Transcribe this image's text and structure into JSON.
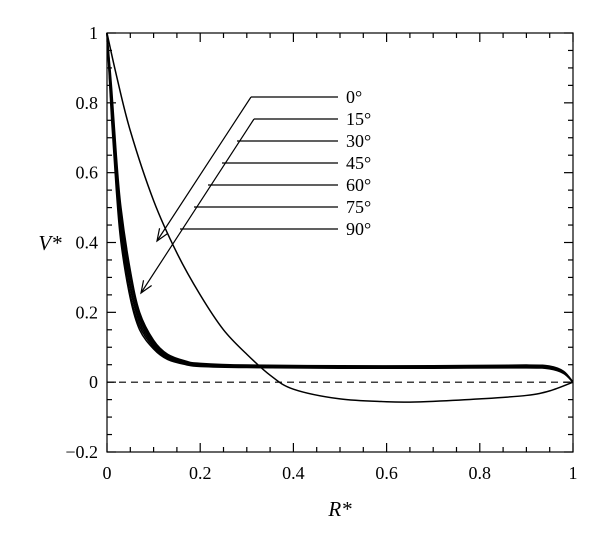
{
  "chart_data": {
    "type": "line",
    "xlabel": "R*",
    "ylabel": "V*",
    "xlim": [
      0,
      1
    ],
    "ylim": [
      -0.2,
      1
    ],
    "x_ticks": [
      "0",
      "0.2",
      "0.4",
      "0.6",
      "0.8",
      "1"
    ],
    "y_ticks": [
      "−0.2",
      "0",
      "0.2",
      "0.4",
      "0.6",
      "0.8",
      "1"
    ],
    "grid": false,
    "reference_line": {
      "y": 0,
      "style": "dashed"
    },
    "legend_position": "top-center (callouts with arrows)",
    "series": [
      {
        "name": "0°",
        "x": [
          0,
          0.02,
          0.05,
          0.1,
          0.15,
          0.2,
          0.25,
          0.3,
          0.35,
          0.4,
          0.5,
          0.6,
          0.65,
          0.7,
          0.8,
          0.9,
          0.95,
          1.0
        ],
        "y": [
          1.0,
          0.88,
          0.72,
          0.52,
          0.37,
          0.25,
          0.15,
          0.08,
          0.02,
          -0.02,
          -0.048,
          -0.056,
          -0.057,
          -0.055,
          -0.048,
          -0.038,
          -0.025,
          0.0
        ]
      },
      {
        "name": "15°",
        "x": [
          0,
          0.01,
          0.02,
          0.03,
          0.05,
          0.07,
          0.1,
          0.13,
          0.17,
          0.2,
          0.3,
          0.5,
          0.7,
          0.9,
          0.95,
          0.98,
          1.0
        ],
        "y": [
          1.0,
          0.75,
          0.55,
          0.4,
          0.24,
          0.15,
          0.095,
          0.065,
          0.05,
          0.045,
          0.042,
          0.04,
          0.04,
          0.041,
          0.038,
          0.025,
          0.0
        ]
      },
      {
        "name": "30°",
        "x": [
          0,
          0.01,
          0.02,
          0.03,
          0.05,
          0.07,
          0.1,
          0.13,
          0.17,
          0.2,
          0.3,
          0.5,
          0.7,
          0.9,
          0.95,
          0.98,
          1.0
        ],
        "y": [
          1.0,
          0.77,
          0.57,
          0.42,
          0.25,
          0.16,
          0.1,
          0.068,
          0.052,
          0.047,
          0.043,
          0.041,
          0.041,
          0.042,
          0.039,
          0.026,
          0.0
        ]
      },
      {
        "name": "45°",
        "x": [
          0,
          0.01,
          0.02,
          0.03,
          0.05,
          0.07,
          0.1,
          0.13,
          0.17,
          0.2,
          0.3,
          0.5,
          0.7,
          0.9,
          0.95,
          0.98,
          1.0
        ],
        "y": [
          1.0,
          0.78,
          0.59,
          0.44,
          0.27,
          0.17,
          0.105,
          0.07,
          0.054,
          0.048,
          0.044,
          0.042,
          0.042,
          0.043,
          0.04,
          0.027,
          0.0
        ]
      },
      {
        "name": "60°",
        "x": [
          0,
          0.01,
          0.02,
          0.03,
          0.05,
          0.07,
          0.1,
          0.13,
          0.17,
          0.2,
          0.3,
          0.5,
          0.7,
          0.9,
          0.95,
          0.98,
          1.0
        ],
        "y": [
          1.0,
          0.8,
          0.61,
          0.46,
          0.28,
          0.18,
          0.11,
          0.073,
          0.056,
          0.05,
          0.045,
          0.043,
          0.043,
          0.045,
          0.042,
          0.028,
          0.0
        ]
      },
      {
        "name": "75°",
        "x": [
          0,
          0.01,
          0.02,
          0.03,
          0.05,
          0.07,
          0.1,
          0.13,
          0.17,
          0.2,
          0.3,
          0.5,
          0.7,
          0.9,
          0.95,
          0.98,
          1.0
        ],
        "y": [
          1.0,
          0.82,
          0.63,
          0.48,
          0.3,
          0.19,
          0.115,
          0.076,
          0.058,
          0.052,
          0.047,
          0.045,
          0.045,
          0.047,
          0.044,
          0.03,
          0.0
        ]
      },
      {
        "name": "90°",
        "x": [
          0,
          0.01,
          0.02,
          0.03,
          0.05,
          0.07,
          0.1,
          0.13,
          0.17,
          0.2,
          0.3,
          0.5,
          0.7,
          0.9,
          0.95,
          0.98,
          1.0
        ],
        "y": [
          1.0,
          0.84,
          0.65,
          0.5,
          0.32,
          0.2,
          0.12,
          0.08,
          0.06,
          0.054,
          0.049,
          0.047,
          0.047,
          0.049,
          0.046,
          0.031,
          0.0
        ]
      }
    ]
  }
}
